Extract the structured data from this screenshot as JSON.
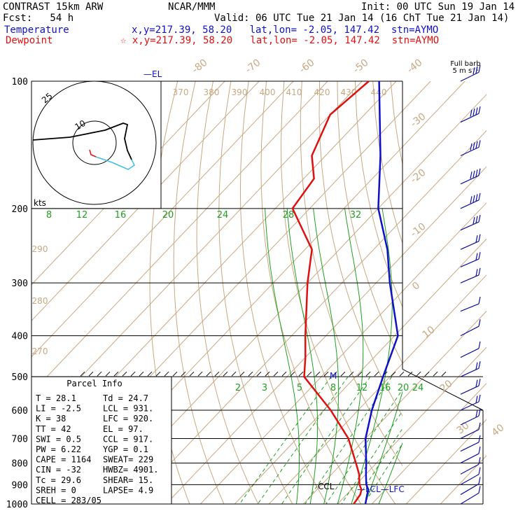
{
  "header": {
    "model": "CONTRAST 15km ARW",
    "fcst": "Fcst:   54 h",
    "org": "NCAR/MMM",
    "init": "Init: 00 UTC Sun 19 Jan 14",
    "valid": "Valid: 06 UTC Tue 21 Jan 14 (16 ChT Tue 21 Jan 14)",
    "temp_label": "Temperature",
    "temp_info": "x,y=217.39, 58.20   lat,lon= -2.05, 147.42  stn=AYMO",
    "dew_label": "Dewpoint",
    "dew_info": "x,y=217.39, 58.20   lat,lon= -2.05, 147.42  stn=AYMO"
  },
  "colors": {
    "temperature": "#1010c8",
    "dewpoint": "#e01010",
    "isotherm": "#c8a882",
    "mixing_ratio": "#20a020",
    "hodograph_low": "#e01010",
    "hodograph_mid": "#40c0e0"
  },
  "labels": {
    "el": "EL",
    "ccl": "CCL",
    "lcl": "LCL",
    "lfc": "LFC",
    "kts": "kts",
    "m": "M",
    "full_barb": "Full barb",
    "barb_units": "5 m s⁻¹",
    "hodo_ring_inner": "10",
    "hodo_ring_outer": "25"
  },
  "parcel_info": {
    "title": "Parcel Info",
    "rows": [
      [
        "T  =   28.1",
        "Td =  24.7"
      ],
      [
        "LI =   -2.5",
        "LCL =  931."
      ],
      [
        "K  =     38",
        "LFC =  920."
      ],
      [
        "TT =     42",
        "EL  =   97."
      ],
      [
        "SWI =   0.5",
        "CCL =  917."
      ],
      [
        "PW =   6.22",
        "YGP =   0.1"
      ],
      [
        "CAPE =  1164",
        "SWEAT=  229"
      ],
      [
        "CIN =    -32",
        "HWBZ= 4901."
      ],
      [
        "Tc =   29.6",
        "SHEAR=  15."
      ],
      [
        "SREH =     0",
        "LAPSE=  4.9"
      ],
      [
        "CELL = 283/05",
        ""
      ]
    ]
  },
  "chart_data": {
    "type": "line",
    "title": "",
    "xlabel": "",
    "ylabel": "",
    "pressure_levels": [
      100,
      200,
      300,
      400,
      500,
      600,
      700,
      800,
      900,
      1000
    ],
    "pressure_labels": [
      "100",
      "200",
      "300",
      "400",
      "500",
      "600",
      "700",
      "800",
      "900",
      "1000"
    ],
    "isotherm_labels": [
      "-80",
      "-70",
      "-60",
      "-50",
      "-40",
      "-30",
      "-20",
      "-10",
      "0",
      "10",
      "20",
      "30",
      "40"
    ],
    "theta_labels": [
      "370",
      "380",
      "390",
      "400",
      "410",
      "420",
      "430",
      "440",
      "290",
      "280",
      "270"
    ],
    "mixing_ratio_labels_upper": [
      "8",
      "12",
      "16",
      "20",
      "24",
      "28",
      "32"
    ],
    "mixing_ratio_labels_lower": [
      "2",
      "3",
      "5",
      "8",
      "12",
      "16",
      "20",
      "24"
    ],
    "series": [
      {
        "name": "Temperature",
        "pressure": [
          100,
          150,
          200,
          250,
          300,
          400,
          500,
          600,
          700,
          800,
          850,
          900,
          925,
          950,
          1000
        ],
        "values": [
          -85,
          -64,
          -50,
          -36,
          -26,
          -9,
          -2,
          4,
          10,
          17,
          20,
          23,
          25,
          26,
          28.1
        ]
      },
      {
        "name": "Dewpoint",
        "pressure": [
          100,
          120,
          150,
          170,
          200,
          250,
          300,
          400,
          450,
          500,
          600,
          700,
          800,
          850,
          900,
          925,
          950,
          1000
        ],
        "values": [
          -88,
          -90,
          -84,
          -77,
          -75,
          -58,
          -50,
          -36,
          -30,
          -25,
          -8,
          5,
          14,
          18,
          21,
          23,
          24,
          24.7
        ]
      }
    ],
    "wind_barbs": {
      "pressure": [
        100,
        125,
        150,
        175,
        200,
        225,
        250,
        275,
        300,
        350,
        400,
        450,
        500,
        550,
        600,
        650,
        700,
        750,
        800,
        850,
        900,
        950,
        1000
      ],
      "speed_ms": [
        15,
        20,
        22,
        20,
        18,
        15,
        12,
        10,
        8,
        5,
        3,
        5,
        8,
        10,
        10,
        8,
        5,
        5,
        5,
        3,
        3,
        3,
        3
      ],
      "direction_deg": [
        80,
        85,
        90,
        90,
        90,
        95,
        95,
        100,
        100,
        110,
        290,
        280,
        270,
        270,
        270,
        280,
        280,
        280,
        290,
        300,
        310,
        320,
        330
      ]
    },
    "hodograph_rings_kts": [
      10,
      25
    ],
    "grid": true,
    "legend": "top-left"
  }
}
